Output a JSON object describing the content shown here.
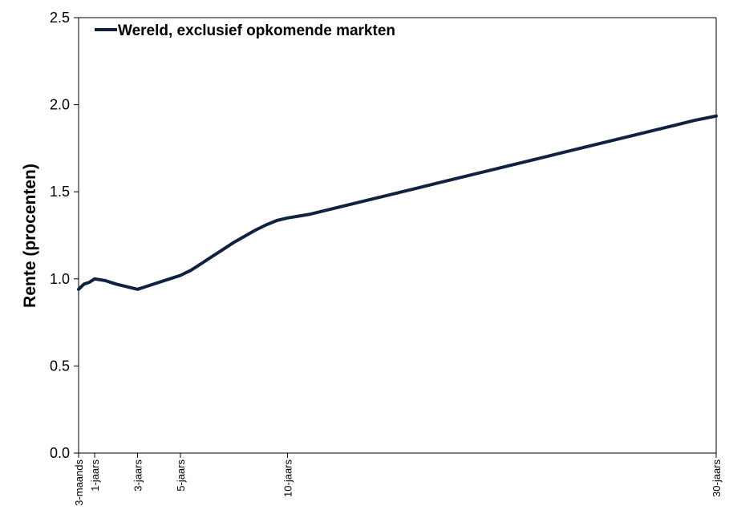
{
  "chart_data": {
    "type": "line",
    "title": "",
    "xlabel": "",
    "ylabel": "Rente (procenten)",
    "ylim": [
      0,
      2.5
    ],
    "yticks": [
      "0.0",
      "0.5",
      "1.0",
      "1.5",
      "2.0",
      "2.5"
    ],
    "xlim": [
      0.25,
      30
    ],
    "xticks": [
      {
        "label": "3-maands",
        "x": 0.25
      },
      {
        "label": "1-jaars",
        "x": 1
      },
      {
        "label": "3-jaars",
        "x": 3
      },
      {
        "label": "5-jaars",
        "x": 5
      },
      {
        "label": "10-jaars",
        "x": 10
      },
      {
        "label": "30-jaars",
        "x": 30
      }
    ],
    "grid": false,
    "legend": "top-left",
    "color": "#0f2340",
    "series": [
      {
        "name": "Wereld, exclusief opkomende markten",
        "x": [
          0.25,
          0.5,
          0.75,
          1.0,
          1.5,
          2.0,
          2.5,
          3.0,
          3.5,
          4.0,
          4.5,
          5.0,
          5.5,
          6.0,
          6.5,
          7.0,
          7.5,
          8.0,
          8.5,
          9.0,
          9.5,
          10.0,
          10.5,
          11,
          12,
          13,
          14,
          15,
          16,
          17,
          18,
          19,
          20,
          21,
          22,
          23,
          24,
          25,
          26,
          27,
          28,
          29,
          30
        ],
        "values": [
          0.94,
          0.97,
          0.98,
          1.0,
          0.99,
          0.97,
          0.955,
          0.94,
          0.96,
          0.98,
          1.0,
          1.02,
          1.05,
          1.09,
          1.13,
          1.17,
          1.21,
          1.245,
          1.28,
          1.31,
          1.335,
          1.35,
          1.36,
          1.37,
          1.4,
          1.43,
          1.46,
          1.49,
          1.52,
          1.55,
          1.58,
          1.61,
          1.64,
          1.67,
          1.7,
          1.73,
          1.76,
          1.79,
          1.82,
          1.85,
          1.88,
          1.91,
          1.935
        ]
      }
    ]
  }
}
